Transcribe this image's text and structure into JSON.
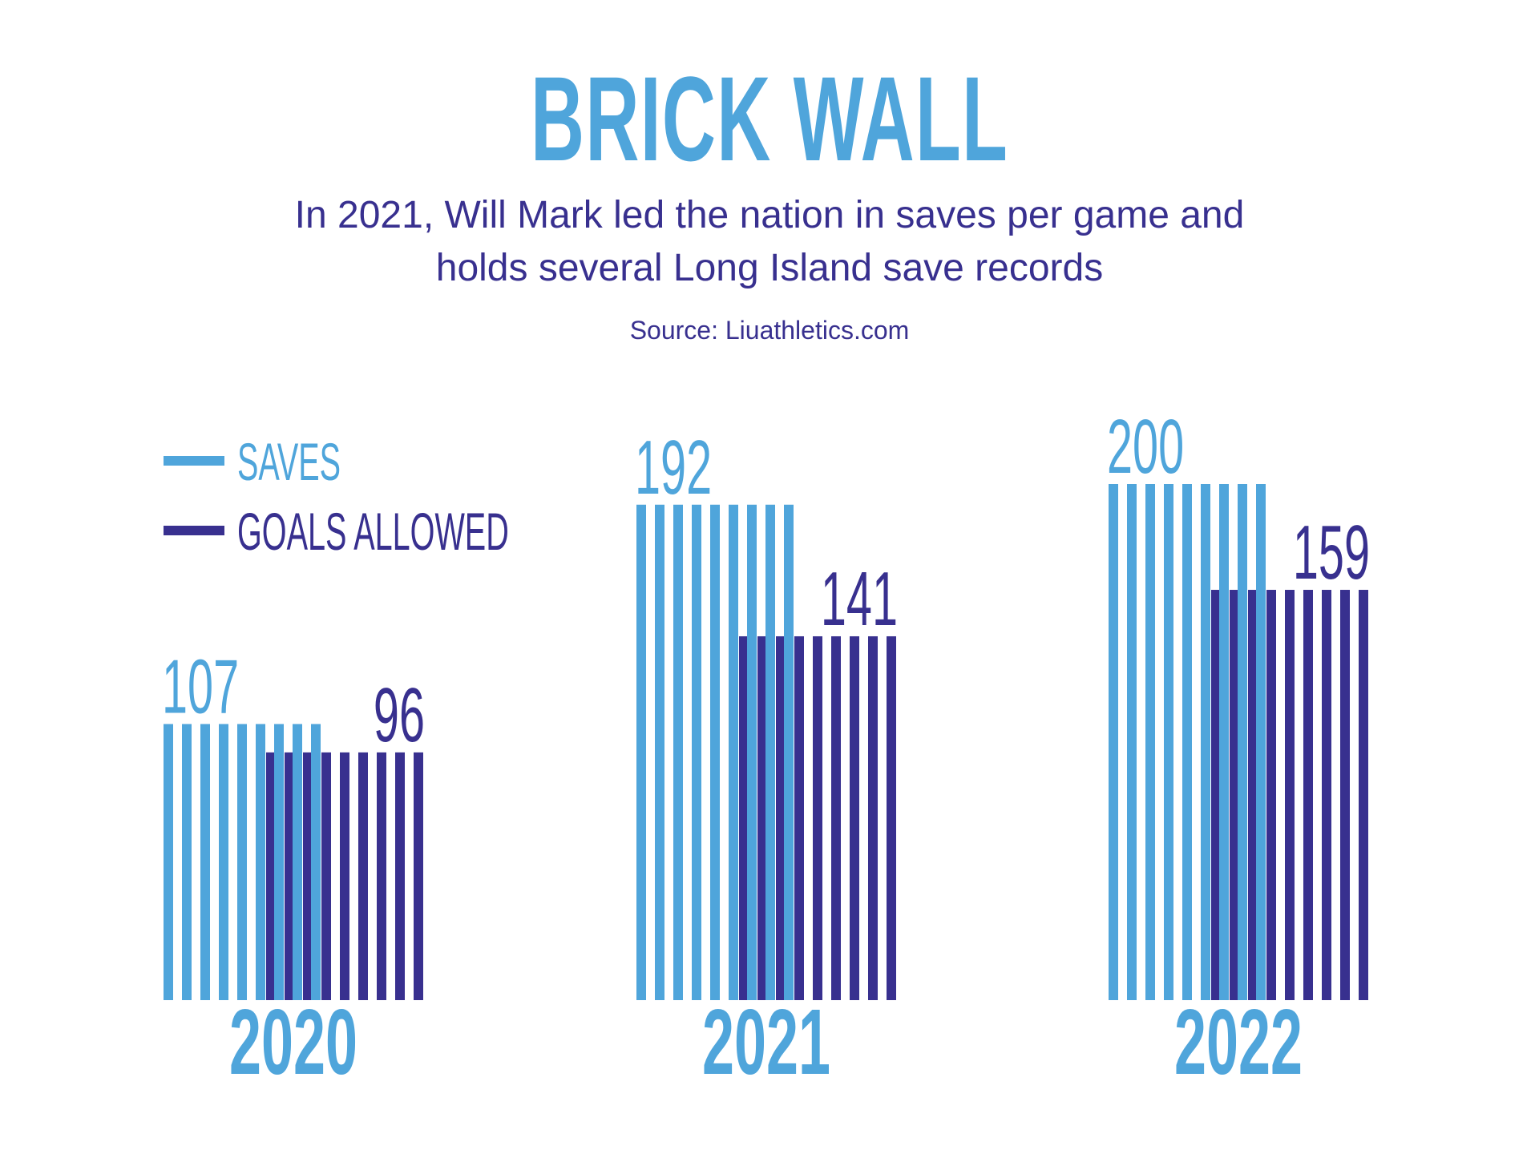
{
  "title": "BRICK WALL",
  "subtitle_lines": [
    "In 2021, Will Mark led the nation in saves per game and",
    "holds several Long Island save records"
  ],
  "source": "Source:  Liuathletics.com",
  "colors": {
    "saves": "#4fa5db",
    "goals_allowed": "#38308f",
    "title": "#4fa5db",
    "text": "#38308f",
    "background": "#ffffff"
  },
  "chart_data": {
    "type": "bar",
    "title": "BRICK WALL",
    "subtitle": "In 2021, Will Mark led the nation in saves per game and holds several Long Island save records",
    "xlabel": "",
    "ylabel": "",
    "categories": [
      "2020",
      "2021",
      "2022"
    ],
    "series": [
      {
        "name": "SAVES",
        "key": "saves",
        "values": [
          107,
          192,
          200
        ]
      },
      {
        "name": "GOALS ALLOWED",
        "key": "goals_allowed",
        "values": [
          96,
          141,
          159
        ]
      }
    ],
    "ylim": [
      0,
      200
    ],
    "grid": false,
    "legend": {
      "placement": "top-left",
      "entries": [
        "SAVES",
        "GOALS ALLOWED"
      ]
    },
    "data_labels": true,
    "annotation": "Source:  Liuathletics.com"
  }
}
